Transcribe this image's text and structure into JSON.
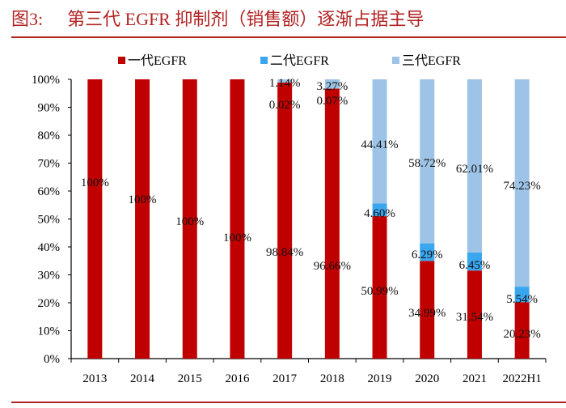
{
  "title": {
    "figure_no": "图3:",
    "text": "第三代 EGFR 抑制剂（销售额）逐渐占据主导"
  },
  "chart_data": {
    "type": "bar",
    "stacked": true,
    "categories": [
      "2013",
      "2014",
      "2015",
      "2016",
      "2017",
      "2018",
      "2019",
      "2020",
      "2021",
      "2022H1"
    ],
    "series": [
      {
        "name": "一代EGFR",
        "color": "#C00000",
        "values": [
          100,
          100,
          100,
          100,
          98.84,
          96.66,
          50.99,
          34.99,
          31.54,
          20.23
        ],
        "labels": [
          "100%",
          "100%",
          "100%",
          "100%",
          "98.84%",
          "96.66%",
          "50.99%",
          "34.99%",
          "31.54%",
          "20.23%"
        ]
      },
      {
        "name": "二代EGFR",
        "color": "#3BA6F0",
        "values": [
          0,
          0,
          0,
          0,
          0.02,
          0.07,
          4.6,
          6.29,
          6.45,
          5.54
        ],
        "labels": [
          "",
          "",
          "",
          "",
          "0.02%",
          "0.07%",
          "4.60%",
          "6.29%",
          "6.45%",
          "5.54%"
        ]
      },
      {
        "name": "三代EGFR",
        "color": "#9DC3E6",
        "values": [
          0,
          0,
          0,
          0,
          1.14,
          3.27,
          44.41,
          58.72,
          62.01,
          74.23
        ],
        "labels": [
          "",
          "",
          "",
          "",
          "1.14%",
          "3.27%",
          "44.41%",
          "58.72%",
          "62.01%",
          "74.23%"
        ]
      }
    ],
    "yticks": [
      "0%",
      "10%",
      "20%",
      "30%",
      "40%",
      "50%",
      "60%",
      "70%",
      "80%",
      "90%",
      "100%"
    ],
    "ylim": [
      0,
      100
    ],
    "grid": false,
    "legend": "top"
  }
}
